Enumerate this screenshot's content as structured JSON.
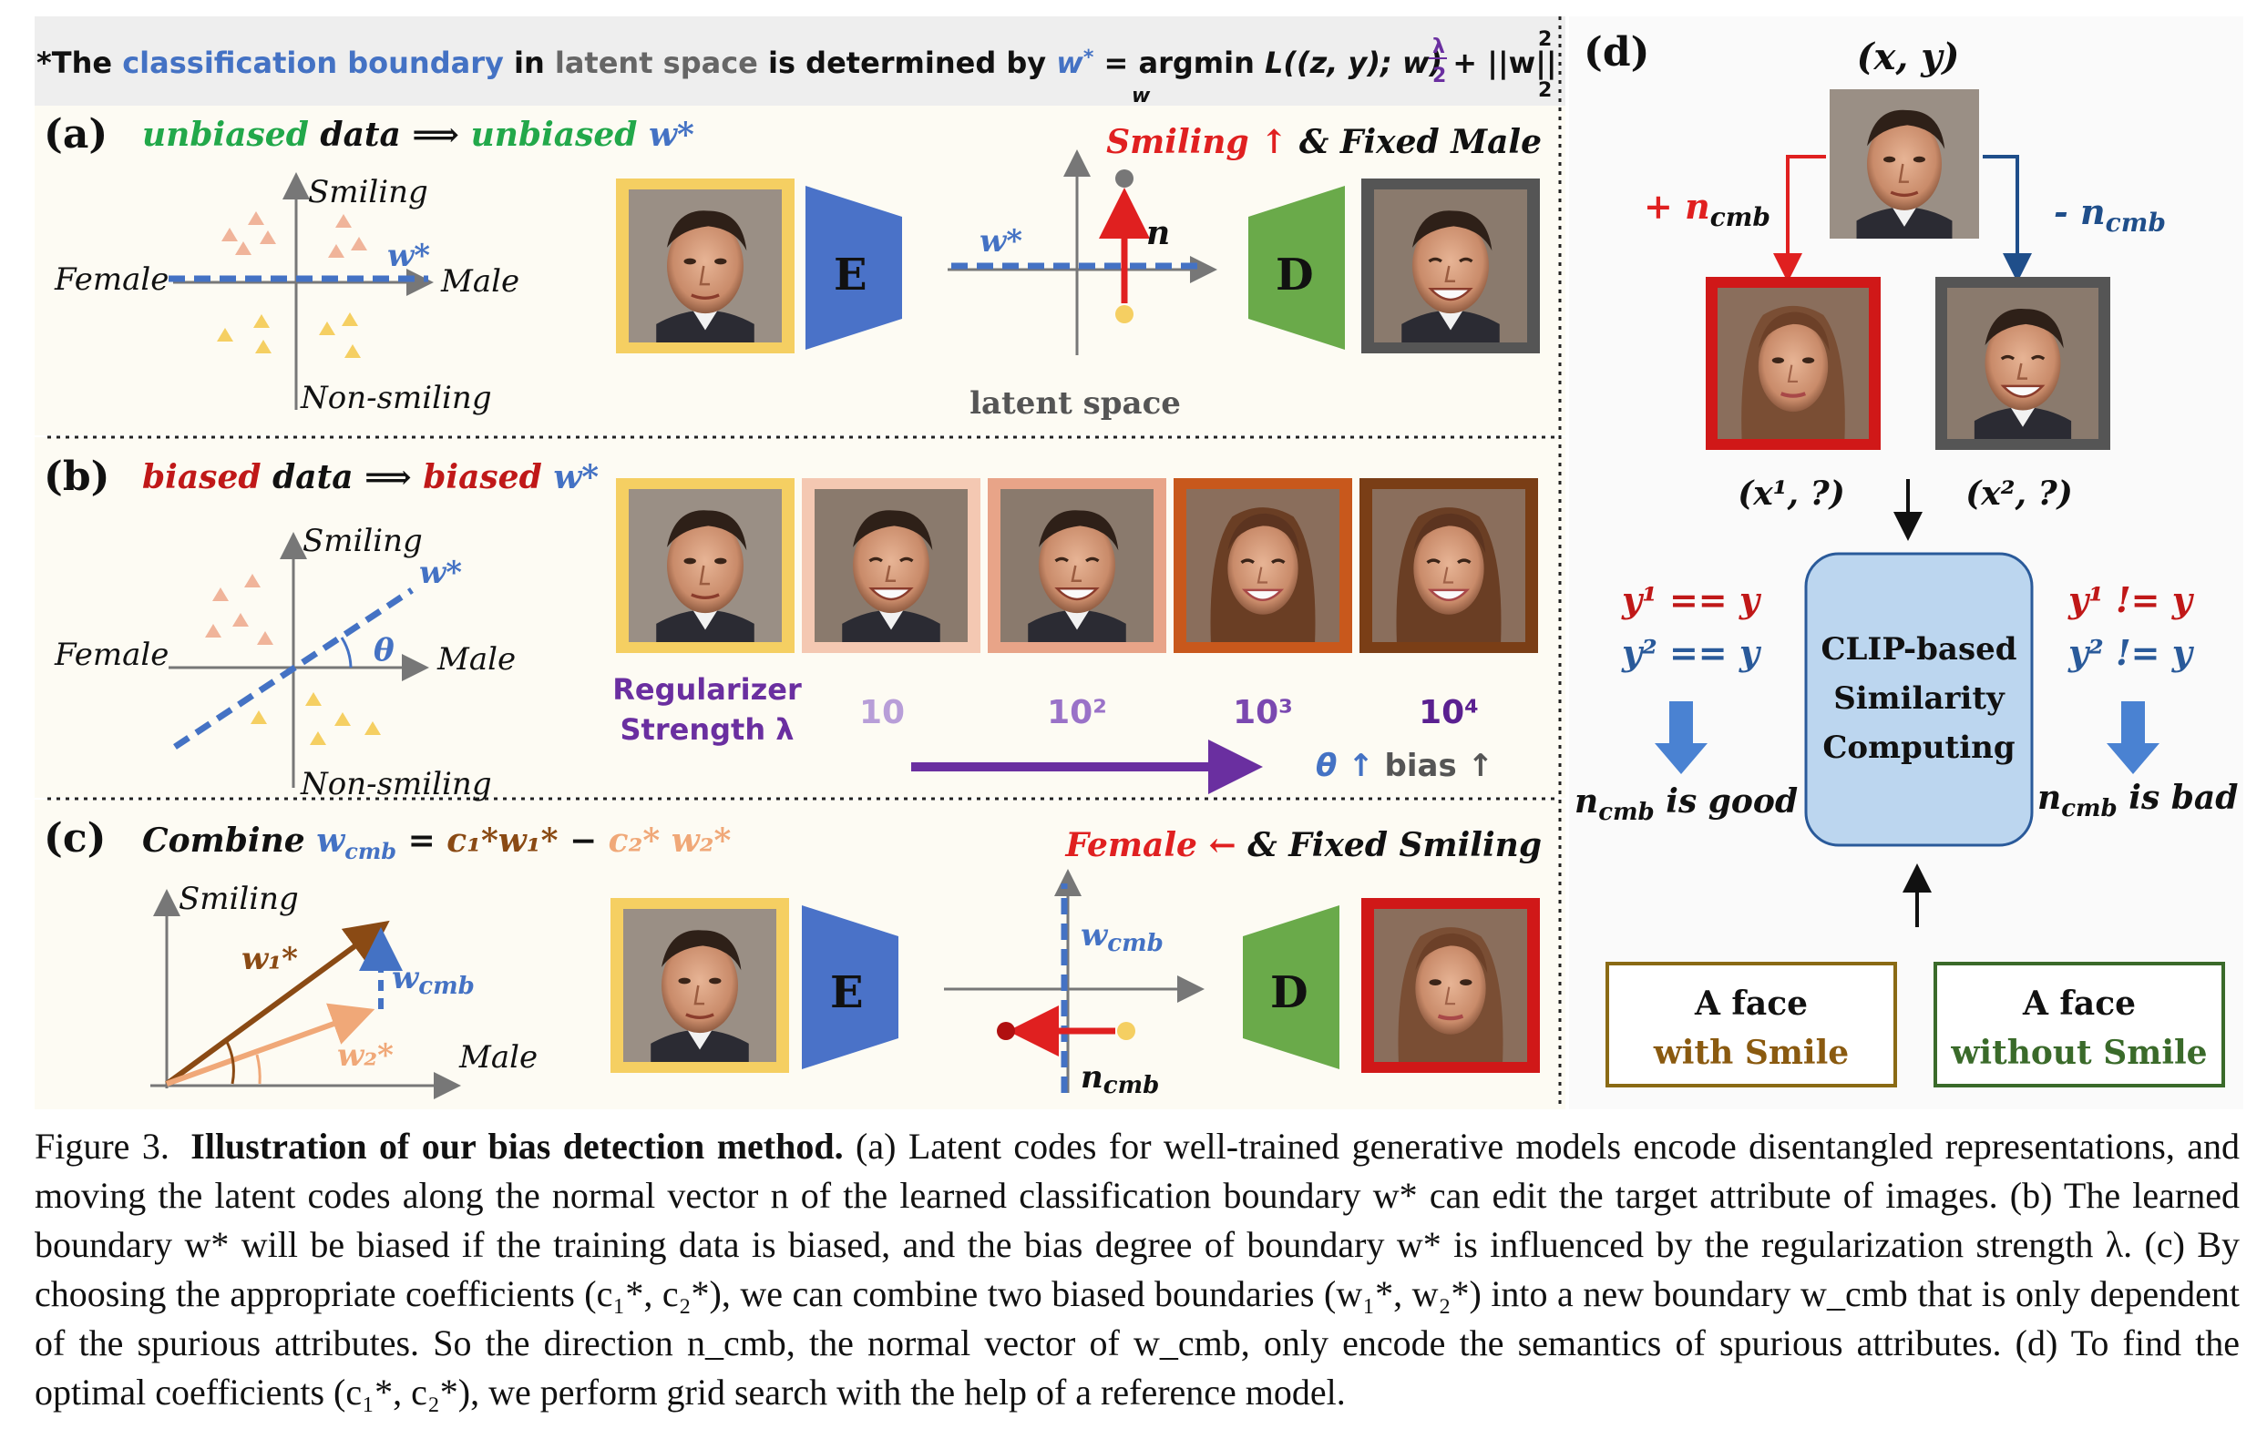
{
  "header": {
    "prefix": "*The",
    "classification_boundary": "classification boundary",
    "in": "in",
    "latent_space": "latent space",
    "determined_by": "is determined by",
    "equation": "w* = argmin L((z, y); w) + λ/2 ||w||²₂",
    "eq_w": "w",
    "eq_star": "*",
    "eq_eq": "=",
    "eq_argmin": "argmin",
    "eq_sub": "w",
    "eq_loss": "L((z, y); w) +",
    "eq_lambda": "λ",
    "eq_two": "2",
    "eq_norm": "||w||",
    "eq_sup": "2",
    "eq_sub2": "2"
  },
  "panel_a": {
    "label": "(a)",
    "title_part1": "unbiased",
    "title_part2": "data ⟹",
    "title_part3": "unbiased",
    "title_part4": "w*",
    "right_title_red": "Smiling ↑",
    "right_title_black": "& Fixed Male",
    "axis_top": "Smiling",
    "axis_left": "Female",
    "axis_right": "Male",
    "axis_bottom": "Non-smiling",
    "boundary_label": "w*",
    "encoder": "E",
    "decoder": "D",
    "latent_w": "w*",
    "latent_n": "n",
    "latent_caption": "latent space"
  },
  "panel_b": {
    "label": "(b)",
    "title_part1": "biased",
    "title_part2": "data ⟹",
    "title_part3": "biased",
    "title_part4": "w*",
    "axis_top": "Smiling",
    "axis_left": "Female",
    "axis_right": "Male",
    "axis_bottom": "Non-smiling",
    "boundary_label": "w*",
    "theta": "θ",
    "reg_line1": "Regularizer",
    "reg_line2": "Strength λ",
    "strengths": [
      "10",
      "10²",
      "10³",
      "10⁴"
    ],
    "arrow_caption_theta": "θ ↑",
    "arrow_caption_bias": "bias ↑"
  },
  "panel_c": {
    "label": "(c)",
    "title": "Combine",
    "equation": "w_cmb = c₁*w₁* − c₂* w₂*",
    "eq_wcmb": "w",
    "eq_cmb_sub": "cmb",
    "eq_rest1": "=",
    "eq_c1w1": "c₁*w₁*",
    "eq_minus": "−",
    "eq_c2w2": "c₂* w₂*",
    "right_title_red": "Female ←",
    "right_title_black": "& Fixed Smiling",
    "axis_top": "Smiling",
    "axis_right": "Male",
    "w1": "w₁*",
    "w2": "w₂*",
    "wcmb": "w",
    "cmb": "cmb",
    "encoder": "E",
    "decoder": "D",
    "latent_wcmb": "w",
    "latent_ncmb": "n"
  },
  "panel_d": {
    "label": "(d)",
    "top_label": "(x, y)",
    "plus": "+ n",
    "minus": "- n",
    "cmb": "cmb",
    "x1": "(x¹, ?)",
    "x2": "(x², ?)",
    "left_eq1": "y¹ == y",
    "left_eq2": "y² == y",
    "right_eq1": "y¹ != y",
    "right_eq2": "y² != y",
    "clip_line1": "CLIP-based",
    "clip_line2": "Similarity",
    "clip_line3": "Computing",
    "good_prefix": "n",
    "good_sub": "cmb",
    "good": "is good",
    "bad_prefix": "n",
    "bad_sub": "cmb",
    "bad": "is bad",
    "prompt1_line1": "A face",
    "prompt1_line2": "with Smile",
    "prompt2_line1": "A face",
    "prompt2_line2": "without Smile"
  },
  "caption": {
    "fig": "Figure 3.",
    "title": "Illustration of our bias detection method.",
    "body": "(a) Latent codes for well-trained generative models encode disentangled representations, and moving the latent codes along the normal vector n of the learned classification boundary w* can edit the target attribute of images. (b) The learned boundary w* will be biased if the training data is biased, and the bias degree of boundary w* is influenced by the regularization strength λ. (c) By choosing the appropriate coefficients (c₁*, c₂*), we can combine two biased boundaries (w₁*, w₂*) into a new boundary w_cmb that is only dependent of the spurious attributes. So the direction n_cmb, the normal vector of w_cmb, only encode the semantics of spurious attributes. (d) To find the optimal coefficients (c₁*, c₂*), we perform grid search with the help of a reference model."
  },
  "colors": {
    "blue": "#4472c4",
    "green": "#22a84a",
    "red": "#e02020",
    "darkred": "#b01010",
    "purple": "#6a2fa0",
    "gold": "#f5cf62",
    "encoder": "#4a72c8",
    "decoder": "#6aaa4a",
    "clip_box": "#bcd6ef",
    "brown": "#8a4a14",
    "orange": "#f0a878"
  }
}
